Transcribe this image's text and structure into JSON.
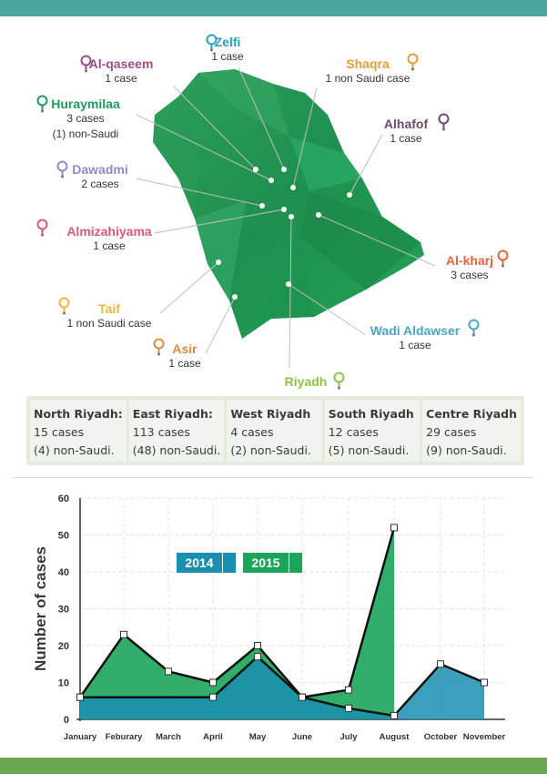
{
  "map_labels": [
    {
      "id": "zelfi",
      "name": "Zelfi",
      "lines": [
        "1 case"
      ],
      "color": "#25a4c6"
    },
    {
      "id": "alqaseem",
      "name": "Al-qaseem",
      "lines": [
        "1 case"
      ],
      "color": "#9c4d8a"
    },
    {
      "id": "shaqra",
      "name": "Shaqra",
      "lines": [
        "1 non Saudi case"
      ],
      "color": "#e89c3a"
    },
    {
      "id": "huraymilaa",
      "name": "Huraymilaa",
      "lines": [
        "3 cases",
        "(1) non-Saudi"
      ],
      "color": "#1f9a5a"
    },
    {
      "id": "alhafof",
      "name": "Alhafof",
      "lines": [
        "1 case"
      ],
      "color": "#6a4d6b"
    },
    {
      "id": "dawadmi",
      "name": "Dawadmi",
      "lines": [
        "2 cases"
      ],
      "color": "#8c8ccc"
    },
    {
      "id": "almizahiyama",
      "name": "Almizahiyama",
      "lines": [
        "1 case"
      ],
      "color": "#e2557a"
    },
    {
      "id": "alkharj",
      "name": "Al-kharj",
      "lines": [
        "3 cases"
      ],
      "color": "#e8643a"
    },
    {
      "id": "taif",
      "name": "Taif",
      "lines": [
        "1 non Saudi case"
      ],
      "color": "#e8b83a"
    },
    {
      "id": "wadialdawser",
      "name": "Wadi Aldawser",
      "lines": [
        "1 case"
      ],
      "color": "#4aa7c8"
    },
    {
      "id": "asir",
      "name": "Asir",
      "lines": [
        "1 case"
      ],
      "color": "#e08a3a"
    },
    {
      "id": "riyadh",
      "name": "Riyadh",
      "lines": [],
      "color": "#8cc63f"
    }
  ],
  "regions": [
    {
      "name": "North Riyadh:",
      "cases": "15 cases",
      "non_saudi": "(4) non-Saudi."
    },
    {
      "name": "East Riyadh:",
      "cases": "113 cases",
      "non_saudi": "(48) non-Saudi."
    },
    {
      "name": "West Riyadh",
      "cases": "4 cases",
      "non_saudi": "(2) non-Saudi."
    },
    {
      "name": "South Riyadh",
      "cases": "12 cases",
      "non_saudi": "(5) non-Saudi."
    },
    {
      "name": "Centre Riyadh",
      "cases": "29 cases",
      "non_saudi": "(9) non-Saudi."
    }
  ],
  "chart_data": {
    "type": "area",
    "title": "",
    "xlabel": "",
    "ylabel": "Number of cases",
    "categories": [
      "January",
      "Feburary",
      "March",
      "April",
      "May",
      "June",
      "July",
      "August",
      "October",
      "November"
    ],
    "ylim": [
      0,
      60
    ],
    "yticks": [
      0,
      10,
      20,
      30,
      40,
      50,
      60
    ],
    "grid": true,
    "legend_position": "center",
    "series": [
      {
        "name": "2014",
        "color": "#1a8fb0",
        "values": [
          6,
          null,
          null,
          6,
          17,
          6,
          3,
          1,
          15,
          10
        ]
      },
      {
        "name": "2015",
        "color": "#1aa55a",
        "values": [
          6,
          23,
          13,
          10,
          20,
          6,
          8,
          52,
          null,
          null
        ]
      }
    ]
  }
}
